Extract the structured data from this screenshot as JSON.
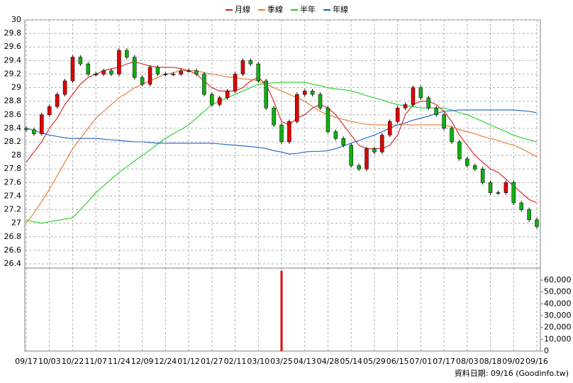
{
  "chart_data": {
    "type": "candlestick",
    "legend": [
      {
        "name": "月線",
        "color": "#d42020"
      },
      {
        "name": "季線",
        "color": "#e8782a"
      },
      {
        "name": "半年",
        "color": "#20d020"
      },
      {
        "name": "年線",
        "color": "#2060c0"
      }
    ],
    "footer": "資料日期: 09/16 (Goodinfo.tw)",
    "categories": [
      "09/17",
      null,
      null,
      "10/03",
      null,
      null,
      "10/22",
      null,
      null,
      "11/07",
      null,
      null,
      "11/24",
      null,
      null,
      "12/09",
      null,
      null,
      "12/24",
      null,
      null,
      "01/12",
      null,
      null,
      "01/27",
      null,
      null,
      "02/11",
      null,
      null,
      "03/10",
      null,
      null,
      "03/25",
      null,
      null,
      "04/13",
      null,
      null,
      "04/28",
      null,
      null,
      "05/14",
      null,
      null,
      "05/29",
      null,
      null,
      "06/15",
      null,
      null,
      "07/01",
      null,
      null,
      "07/17",
      null,
      null,
      "08/03",
      null,
      null,
      "08/18",
      null,
      null,
      "09/02",
      null,
      null,
      "09/16"
    ],
    "up_color": "#e00000",
    "down_color": "#10b010",
    "flat_color": "#000000",
    "candles": {
      "open": [
        28.4,
        28.38,
        28.32,
        28.6,
        28.72,
        28.9,
        29.1,
        29.45,
        29.35,
        29.2,
        29.2,
        29.25,
        29.2,
        29.55,
        29.45,
        29.15,
        29.05,
        29.3,
        29.2,
        29.2,
        29.2,
        29.25,
        29.25,
        29.2,
        28.9,
        28.75,
        28.85,
        28.95,
        29.2,
        29.4,
        29.35,
        29.1,
        28.7,
        28.45,
        28.2,
        28.5,
        28.9,
        28.95,
        28.9,
        28.7,
        28.35,
        28.25,
        28.15,
        27.85,
        27.8,
        28.1,
        28.05,
        28.3,
        28.5,
        28.7,
        28.75,
        29.0,
        28.85,
        28.7,
        28.6,
        28.4,
        28.2,
        27.95,
        27.85,
        27.8,
        27.6,
        27.45,
        27.45,
        27.6,
        27.3,
        27.2,
        27.05
      ],
      "high": [
        28.43,
        28.41,
        28.63,
        28.75,
        28.93,
        29.13,
        29.48,
        29.48,
        29.38,
        29.23,
        29.28,
        29.28,
        29.58,
        29.58,
        29.48,
        29.18,
        29.33,
        29.33,
        29.23,
        29.23,
        29.28,
        29.28,
        29.28,
        29.23,
        28.93,
        28.88,
        28.98,
        29.23,
        29.43,
        29.43,
        29.38,
        29.13,
        28.73,
        28.48,
        28.53,
        28.93,
        28.98,
        28.98,
        28.93,
        28.73,
        28.38,
        28.28,
        28.18,
        27.88,
        28.13,
        28.13,
        28.33,
        28.53,
        28.73,
        28.78,
        29.03,
        29.03,
        28.88,
        28.73,
        28.63,
        28.43,
        28.23,
        27.98,
        27.88,
        27.83,
        27.63,
        27.48,
        27.63,
        27.63,
        27.33,
        27.23,
        27.08
      ],
      "low": [
        28.35,
        28.29,
        28.29,
        28.57,
        28.69,
        28.87,
        29.07,
        29.32,
        29.17,
        29.17,
        29.17,
        29.17,
        29.17,
        29.42,
        29.12,
        29.02,
        29.02,
        29.17,
        29.17,
        29.17,
        29.17,
        29.22,
        29.17,
        28.87,
        28.72,
        28.72,
        28.82,
        28.92,
        29.17,
        29.32,
        29.07,
        28.67,
        28.42,
        28.17,
        28.17,
        28.47,
        28.87,
        28.87,
        28.67,
        28.32,
        28.22,
        28.12,
        27.82,
        27.77,
        27.77,
        28.02,
        28.02,
        28.27,
        28.47,
        28.67,
        28.72,
        28.82,
        28.67,
        28.57,
        28.37,
        28.17,
        27.92,
        27.82,
        27.77,
        27.57,
        27.42,
        27.42,
        27.42,
        27.27,
        27.17,
        27.02,
        26.92
      ],
      "close": [
        28.38,
        28.32,
        28.6,
        28.72,
        28.9,
        29.1,
        29.45,
        29.35,
        29.2,
        29.2,
        29.25,
        29.2,
        29.55,
        29.45,
        29.15,
        29.05,
        29.3,
        29.2,
        29.2,
        29.2,
        29.25,
        29.25,
        29.2,
        28.9,
        28.75,
        28.85,
        28.95,
        29.2,
        29.4,
        29.35,
        29.1,
        28.7,
        28.45,
        28.2,
        28.5,
        28.9,
        28.95,
        28.9,
        28.7,
        28.35,
        28.25,
        28.15,
        27.85,
        27.8,
        28.1,
        28.05,
        28.3,
        28.5,
        28.7,
        28.75,
        29.0,
        28.85,
        28.7,
        28.6,
        28.4,
        28.2,
        27.95,
        27.85,
        27.8,
        27.6,
        27.45,
        27.45,
        27.6,
        27.3,
        27.2,
        27.05,
        26.95
      ]
    },
    "series": [
      {
        "name": "月線",
        "color": "#d42020",
        "values": [
          27.9,
          28.05,
          28.2,
          28.4,
          28.55,
          28.75,
          28.9,
          29.05,
          29.15,
          29.2,
          29.25,
          29.28,
          29.3,
          29.35,
          29.38,
          29.35,
          29.32,
          29.3,
          29.3,
          29.3,
          29.28,
          29.25,
          29.2,
          29.1,
          29.0,
          28.95,
          28.95,
          28.95,
          29.0,
          29.1,
          29.15,
          29.05,
          28.8,
          28.5,
          28.45,
          28.55,
          28.6,
          28.7,
          28.75,
          28.7,
          28.6,
          28.45,
          28.3,
          28.15,
          28.1,
          28.1,
          28.1,
          28.15,
          28.3,
          28.6,
          28.75,
          28.8,
          28.8,
          28.75,
          28.65,
          28.5,
          28.3,
          28.15,
          28.0,
          27.9,
          27.8,
          27.75,
          27.65,
          27.55,
          27.45,
          27.35,
          27.3
        ]
      },
      {
        "name": "季線",
        "color": "#e8782a",
        "values": [
          27.0,
          27.15,
          27.32,
          27.5,
          27.7,
          27.9,
          28.1,
          28.25,
          28.4,
          28.55,
          28.65,
          28.75,
          28.85,
          28.92,
          29.0,
          29.05,
          29.1,
          29.15,
          29.2,
          29.22,
          29.25,
          29.25,
          29.25,
          29.22,
          29.2,
          29.18,
          29.16,
          29.15,
          29.13,
          29.12,
          29.1,
          29.05,
          29.0,
          28.95,
          28.9,
          28.85,
          28.8,
          28.72,
          28.65,
          28.6,
          28.56,
          28.53,
          28.5,
          28.48,
          28.46,
          28.45,
          28.45,
          28.45,
          28.45,
          28.45,
          28.45,
          28.45,
          28.45,
          28.45,
          28.45,
          28.42,
          28.38,
          28.35,
          28.32,
          28.28,
          28.25,
          28.22,
          28.18,
          28.15,
          28.1,
          28.04,
          27.98
        ]
      },
      {
        "name": "半年",
        "color": "#20d020",
        "values": [
          27.05,
          27.02,
          27.0,
          27.02,
          27.04,
          27.06,
          27.08,
          27.2,
          27.32,
          27.45,
          27.55,
          27.65,
          27.75,
          27.83,
          27.92,
          28.0,
          28.08,
          28.17,
          28.25,
          28.32,
          28.38,
          28.45,
          28.55,
          28.65,
          28.75,
          28.8,
          28.85,
          28.9,
          28.95,
          29.0,
          29.05,
          29.06,
          29.07,
          29.08,
          29.08,
          29.08,
          29.08,
          29.05,
          29.03,
          29.0,
          28.98,
          28.97,
          28.95,
          28.92,
          28.88,
          28.85,
          28.82,
          28.78,
          28.75,
          28.73,
          28.72,
          28.7,
          28.7,
          28.7,
          28.7,
          28.67,
          28.63,
          28.6,
          28.55,
          28.5,
          28.45,
          28.4,
          28.35,
          28.3,
          28.26,
          28.23,
          28.2
        ]
      },
      {
        "name": "年線",
        "color": "#2060c0",
        "values": [
          28.4,
          28.37,
          28.33,
          28.3,
          28.28,
          28.26,
          28.25,
          28.25,
          28.25,
          28.25,
          28.24,
          28.23,
          28.22,
          28.21,
          28.2,
          28.2,
          28.19,
          28.18,
          28.18,
          28.18,
          28.18,
          28.18,
          28.18,
          28.18,
          28.18,
          28.17,
          28.16,
          28.15,
          28.14,
          28.13,
          28.12,
          28.1,
          28.07,
          28.05,
          28.02,
          28.03,
          28.05,
          28.06,
          28.06,
          28.07,
          28.1,
          28.14,
          28.18,
          28.22,
          28.26,
          28.3,
          28.35,
          28.4,
          28.45,
          28.48,
          28.52,
          28.55,
          28.58,
          28.62,
          28.65,
          28.66,
          28.67,
          28.67,
          28.67,
          28.67,
          28.67,
          28.67,
          28.67,
          28.67,
          28.66,
          28.65,
          28.63
        ]
      }
    ],
    "ylim": [
      26.4,
      30
    ],
    "yticks": [
      30,
      29.8,
      29.6,
      29.4,
      29.2,
      29,
      28.8,
      28.6,
      28.4,
      28.2,
      28,
      27.8,
      27.6,
      27.4,
      27.2,
      27,
      26.8,
      26.6,
      26.4
    ],
    "volume": {
      "color": "#e00000",
      "values": [
        0,
        0,
        0,
        0,
        0,
        0,
        0,
        0,
        0,
        0,
        0,
        0,
        0,
        0,
        0,
        0,
        0,
        0,
        0,
        0,
        0,
        0,
        0,
        0,
        0,
        0,
        0,
        0,
        0,
        0,
        0,
        0,
        0,
        68000,
        0,
        0,
        0,
        0,
        0,
        0,
        0,
        0,
        0,
        0,
        0,
        0,
        0,
        0,
        0,
        0,
        0,
        0,
        0,
        0,
        0,
        0,
        0,
        0,
        0,
        0,
        0,
        0,
        0,
        0,
        0,
        0,
        0
      ],
      "ylim": [
        0,
        69000
      ],
      "yticks": [
        {
          "value": 60000,
          "label": "60,000"
        },
        {
          "value": 50000,
          "label": "50,000"
        },
        {
          "value": 40000,
          "label": "40,000"
        },
        {
          "value": 30000,
          "label": "30,000"
        },
        {
          "value": 20000,
          "label": "20,000"
        },
        {
          "value": 10000,
          "label": "10,000"
        },
        0
      ]
    },
    "grid": true
  }
}
